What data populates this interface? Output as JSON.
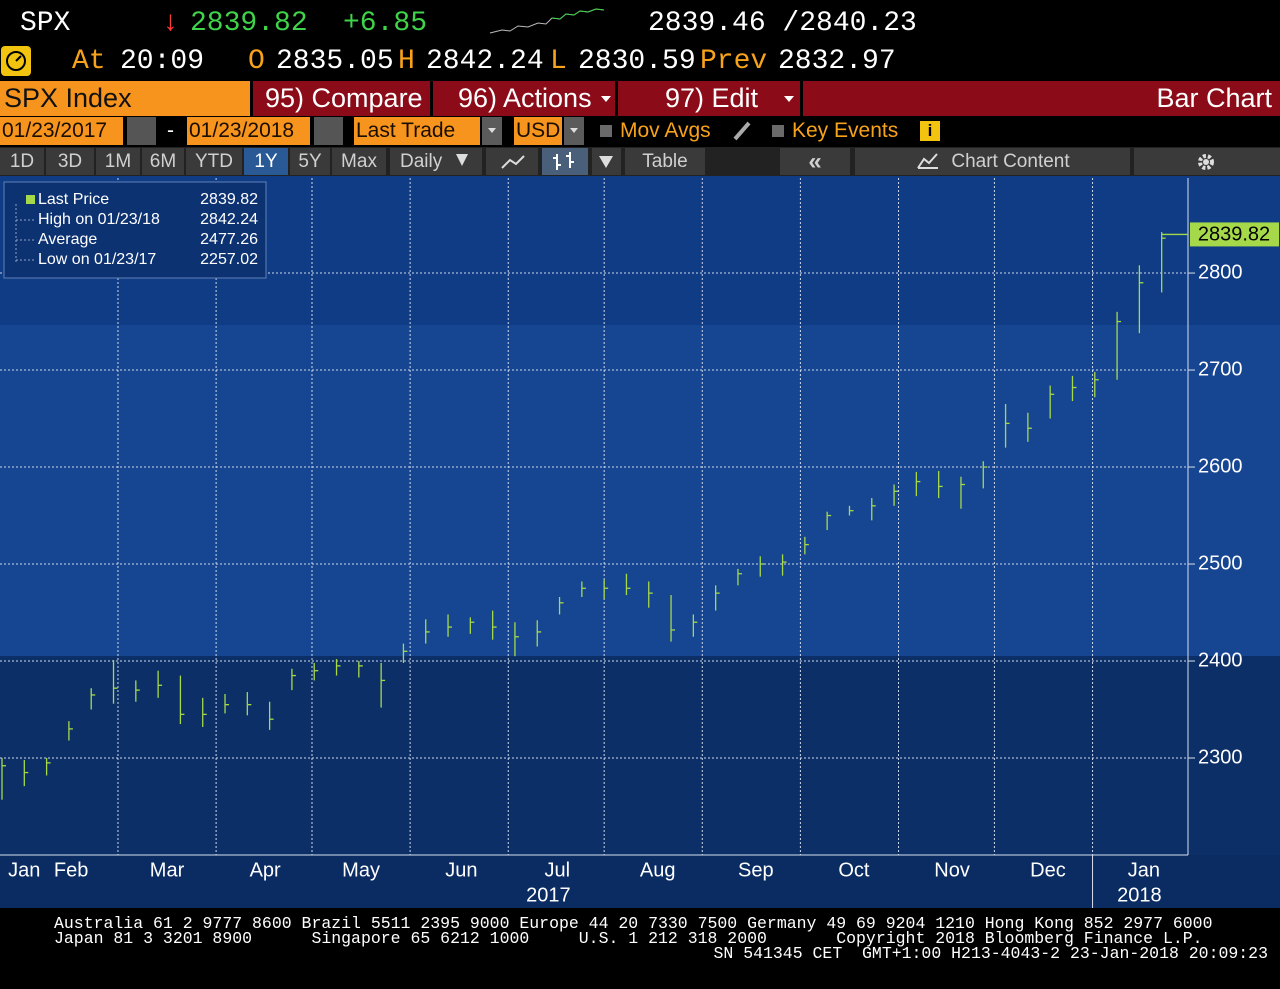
{
  "header": {
    "ticker": "SPX",
    "arrow": "↓",
    "last": "2839.82",
    "change": "+6.85",
    "bid_ask": "2839.46 /2840.23",
    "at_label": "At",
    "time": "20:09",
    "open_label": "O",
    "open": "2835.05",
    "high_label": "H",
    "high": "2842.24",
    "low_label": "L",
    "low": "2830.59",
    "prev_label": "Prev",
    "prev": "2832.97"
  },
  "menu": {
    "security": "SPX Index",
    "compare": "95) Compare",
    "actions": "96) Actions",
    "edit": "97) Edit",
    "view": "Bar Chart"
  },
  "toolbar": {
    "start_date": "01/23/2017",
    "dash": "-",
    "end_date": "01/23/2018",
    "price_field": "Last Trade",
    "currency": "USD",
    "mov_avgs": "Mov Avgs",
    "key_events": "Key Events",
    "info": "i"
  },
  "tabs": {
    "ranges": [
      "1D",
      "3D",
      "1M",
      "6M",
      "YTD",
      "1Y",
      "5Y",
      "Max"
    ],
    "selected": 5,
    "frequency": "Daily",
    "table": "Table",
    "collapse": "«",
    "chart_content": "Chart Content"
  },
  "chart_data": {
    "type": "ohlc",
    "series": [
      {
        "name": "Last Price",
        "color": "#a6d94a",
        "high": [
          2300,
          2298,
          2300,
          2338,
          2372,
          2401,
          2380,
          2390,
          2385,
          2362,
          2366,
          2368,
          2358,
          2392,
          2398,
          2402,
          2400,
          2398,
          2418,
          2443,
          2448,
          2445,
          2452,
          2440,
          2442,
          2466,
          2482,
          2484,
          2490,
          2482,
          2468,
          2448,
          2478,
          2495,
          2508,
          2510,
          2528,
          2554,
          2560,
          2568,
          2582,
          2595,
          2596,
          2590,
          2606,
          2665,
          2656,
          2684,
          2694,
          2698,
          2760,
          2808,
          2842.24
        ],
        "low": [
          2257.02,
          2271,
          2282,
          2318,
          2350,
          2356,
          2358,
          2362,
          2335,
          2332,
          2346,
          2344,
          2329,
          2370,
          2380,
          2385,
          2383,
          2352,
          2398,
          2418,
          2425,
          2428,
          2422,
          2405,
          2415,
          2448,
          2466,
          2464,
          2468,
          2455,
          2420,
          2425,
          2452,
          2478,
          2487,
          2488,
          2510,
          2535,
          2550,
          2545,
          2560,
          2570,
          2568,
          2557,
          2578,
          2620,
          2626,
          2650,
          2668,
          2672,
          2690,
          2738,
          2780
        ],
        "close": [
          2292,
          2285,
          2295,
          2330,
          2365,
          2372,
          2370,
          2375,
          2345,
          2345,
          2355,
          2355,
          2340,
          2385,
          2390,
          2395,
          2395,
          2380,
          2410,
          2430,
          2435,
          2440,
          2435,
          2425,
          2430,
          2460,
          2475,
          2475,
          2475,
          2470,
          2432,
          2440,
          2470,
          2490,
          2500,
          2502,
          2520,
          2550,
          2555,
          2560,
          2575,
          2585,
          2580,
          2582,
          2600,
          2645,
          2640,
          2675,
          2682,
          2690,
          2750,
          2790,
          2836
        ]
      }
    ],
    "x": [
      0,
      1,
      2,
      3,
      4,
      5,
      6,
      7,
      8,
      9,
      10,
      11,
      12,
      13,
      14,
      15,
      16,
      17,
      18,
      19,
      20,
      21,
      22,
      23,
      24,
      25,
      26,
      27,
      28,
      29,
      30,
      31,
      32,
      33,
      34,
      35,
      36,
      37,
      38,
      39,
      40,
      41,
      42,
      43,
      44,
      45,
      46,
      47,
      48,
      49,
      50,
      51,
      52
    ],
    "xlim": [
      -0.09,
      53.18
    ],
    "ylim": [
      2200,
      2898
    ],
    "yticks": [
      2300,
      2400,
      2500,
      2600,
      2700,
      2800
    ],
    "xticks": [
      {
        "value": 1.0,
        "label": "Jan"
      },
      {
        "value": 3.1,
        "label": "Feb"
      },
      {
        "value": 7.4,
        "label": "Mar"
      },
      {
        "value": 11.8,
        "label": "Apr"
      },
      {
        "value": 16.1,
        "label": "May"
      },
      {
        "value": 20.6,
        "label": "Jun"
      },
      {
        "value": 24.9,
        "label": "Jul"
      },
      {
        "value": 29.4,
        "label": "Aug"
      },
      {
        "value": 33.8,
        "label": "Sep"
      },
      {
        "value": 38.2,
        "label": "Oct"
      },
      {
        "value": 42.6,
        "label": "Nov"
      },
      {
        "value": 46.9,
        "label": "Dec"
      },
      {
        "value": 51.2,
        "label": "Jan"
      }
    ],
    "year_ticks": [
      {
        "value": 24.5,
        "label": "2017"
      },
      {
        "value": 51.0,
        "label": "2018"
      }
    ],
    "x_grid": [
      5.2,
      9.6,
      13.9,
      18.3,
      22.7,
      27.0,
      31.4,
      35.8,
      40.2,
      44.5,
      48.9
    ],
    "grid": true,
    "last_price": 2839.82,
    "stats": [
      {
        "label": "High on 01/23/18",
        "value": 2842.24
      },
      {
        "label": "Average",
        "value": 2477.26
      },
      {
        "label": "Low on 01/23/17",
        "value": 2257.02
      }
    ]
  },
  "footer": {
    "lines": [
      "Australia 61 2 9777 8600 Brazil 5511 2395 9000 Europe 44 20 7330 7500 Germany 49 69 9204 1210 Hong Kong 852 2977 6000",
      "Japan 81 3 3201 8900      Singapore 65 6212 1000     U.S. 1 212 318 2000       Copyright 2018 Bloomberg Finance L.P.",
      "SN 541345 CET  GMT+1:00 H213-4043-2 23-Jan-2018 20:09:23"
    ]
  }
}
